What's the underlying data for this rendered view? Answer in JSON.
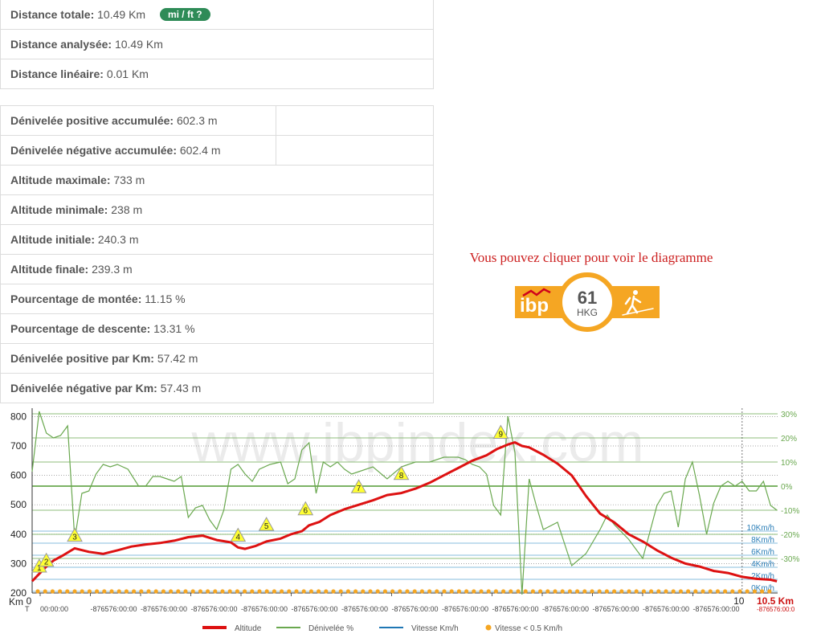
{
  "stats1": [
    {
      "label": "Distance totale:",
      "value": "10.49 Km"
    },
    {
      "label": "Distance analysée:",
      "value": "10.49 Km"
    },
    {
      "label": "Distance linéaire:",
      "value": "0.01 Km"
    }
  ],
  "units_button": "mi / ft ?",
  "stats2": [
    {
      "label": "Dénivelée positive accumulée:",
      "value": "602.3 m"
    },
    {
      "label": "Dénivelée négative accumulée:",
      "value": "602.4 m"
    },
    {
      "label": "Altitude maximale:",
      "value": "733 m"
    },
    {
      "label": "Altitude minimale:",
      "value": "238 m"
    },
    {
      "label": "Altitude initiale:",
      "value": "240.3 m"
    },
    {
      "label": "Altitude finale:",
      "value": "239.3 m"
    },
    {
      "label": "Pourcentage de montée:",
      "value": "11.15 %"
    },
    {
      "label": "Pourcentage de descente:",
      "value": "13.31 %"
    },
    {
      "label": "Dénivelée positive par Km:",
      "value": "57.42 m"
    },
    {
      "label": "Dénivelée négative par Km:",
      "value": "57.43 m"
    }
  ],
  "ibp": {
    "caption": "Vous pouvez cliquer pour voir le diagramme",
    "logo_text": "ibp",
    "score": "61",
    "code": "HKG",
    "colors": {
      "orange": "#f5a623",
      "ring": "#f5a623"
    }
  },
  "chart_data": {
    "type": "line",
    "watermark": "www.ibpindex.com",
    "x_label": "Km",
    "x_end_label": "10.5 Km",
    "x_end_sub": "-876576:00:0",
    "xlim": [
      0,
      10.5
    ],
    "ylim": [
      200,
      850
    ],
    "yticks": [
      200,
      300,
      400,
      500,
      600,
      700,
      800
    ],
    "x_tick_labels": [
      {
        "x": 0,
        "label": "0"
      },
      {
        "x": 10,
        "label": "10"
      }
    ],
    "time_row_start": "T",
    "time_labels": [
      "00:00:00",
      "-876576:00:00",
      "-876576:00:00",
      "-876576:00:00",
      "-876576:00:00",
      "-876576:00:00",
      "-876576:00:00",
      "-876576:00:00",
      "-876576:00:00",
      "-876576:00:00",
      "-876576:00:00",
      "-876576:00:00",
      "-876576:00:00",
      "-876576:00:00"
    ],
    "slope_ticks": [
      {
        "pct": 30,
        "label": "30%"
      },
      {
        "pct": 20,
        "label": "20%"
      },
      {
        "pct": 10,
        "label": "10%"
      },
      {
        "pct": 0,
        "label": "0%"
      },
      {
        "pct": -10,
        "label": "-10%"
      },
      {
        "pct": -20,
        "label": "-20%"
      },
      {
        "pct": -30,
        "label": "-30%"
      }
    ],
    "speed_ticks": [
      {
        "kmh": 10,
        "label": "10Km/h"
      },
      {
        "kmh": 8,
        "label": "8Km/h"
      },
      {
        "kmh": 6,
        "label": "6Km/h"
      },
      {
        "kmh": 4,
        "label": "4Km/h"
      },
      {
        "kmh": 2,
        "label": "2Km/h"
      },
      {
        "kmh": 0,
        "label": "0Km/h"
      }
    ],
    "series": [
      {
        "name": "Altitude",
        "color": "#dd1111",
        "x": [
          0,
          0.1,
          0.2,
          0.3,
          0.45,
          0.6,
          0.8,
          1.0,
          1.2,
          1.4,
          1.6,
          1.8,
          2.0,
          2.2,
          2.4,
          2.6,
          2.8,
          2.9,
          3.0,
          3.15,
          3.3,
          3.5,
          3.65,
          3.8,
          3.9,
          4.05,
          4.2,
          4.4,
          4.6,
          4.8,
          5.0,
          5.2,
          5.4,
          5.6,
          5.8,
          6.0,
          6.2,
          6.4,
          6.55,
          6.7,
          6.8,
          6.9,
          7.0,
          7.2,
          7.4,
          7.6,
          7.8,
          8.0,
          8.2,
          8.4,
          8.6,
          8.8,
          9.0,
          9.2,
          9.4,
          9.6,
          9.8,
          10.0,
          10.2,
          10.4,
          10.49
        ],
        "y": [
          240,
          265,
          290,
          310,
          330,
          352,
          340,
          333,
          345,
          358,
          365,
          370,
          378,
          390,
          395,
          380,
          372,
          355,
          350,
          360,
          375,
          385,
          400,
          410,
          430,
          442,
          465,
          485,
          500,
          515,
          533,
          540,
          555,
          575,
          600,
          625,
          650,
          668,
          690,
          705,
          712,
          700,
          695,
          670,
          640,
          600,
          530,
          470,
          440,
          400,
          375,
          345,
          320,
          300,
          290,
          275,
          268,
          255,
          248,
          245,
          240
        ]
      },
      {
        "name": "Dénivelée %",
        "color": "#6aa84f",
        "x": [
          0,
          0.1,
          0.2,
          0.3,
          0.4,
          0.5,
          0.6,
          0.7,
          0.8,
          0.9,
          1.0,
          1.1,
          1.2,
          1.35,
          1.5,
          1.6,
          1.7,
          1.8,
          1.9,
          2.0,
          2.1,
          2.2,
          2.3,
          2.4,
          2.5,
          2.6,
          2.7,
          2.8,
          2.9,
          3.0,
          3.1,
          3.2,
          3.35,
          3.5,
          3.6,
          3.7,
          3.8,
          3.9,
          4.0,
          4.1,
          4.2,
          4.3,
          4.4,
          4.5,
          4.6,
          4.8,
          5.0,
          5.2,
          5.4,
          5.6,
          5.8,
          6.0,
          6.1,
          6.2,
          6.3,
          6.4,
          6.5,
          6.6,
          6.7,
          6.8,
          6.9,
          7.0,
          7.1,
          7.2,
          7.4,
          7.6,
          7.8,
          8.0,
          8.1,
          8.2,
          8.4,
          8.6,
          8.8,
          8.9,
          9.0,
          9.1,
          9.2,
          9.3,
          9.4,
          9.5,
          9.6,
          9.7,
          9.8,
          9.9,
          10.0,
          10.1,
          10.2,
          10.3,
          10.4,
          10.49
        ],
        "y": [
          6,
          31,
          22,
          20,
          21,
          25,
          -22,
          -3,
          -2,
          5,
          9,
          8,
          9,
          7,
          0,
          0,
          4,
          4,
          3,
          2,
          4,
          -13,
          -9,
          -8,
          -14,
          -18,
          -10,
          7,
          9,
          5,
          2,
          7,
          9,
          10,
          1,
          3,
          15,
          18,
          -3,
          10,
          8,
          10,
          7,
          5,
          6,
          8,
          3,
          8,
          10,
          10,
          12,
          12,
          11,
          9,
          8,
          5,
          -8,
          -12,
          29,
          14,
          -45,
          3,
          -8,
          -18,
          -15,
          -33,
          -28,
          -18,
          -12,
          -16,
          -22,
          -30,
          -8,
          -3,
          -2,
          -17,
          3,
          10,
          -4,
          -20,
          -7,
          0,
          2,
          0,
          2,
          -2,
          -2,
          2,
          -8,
          -10
        ]
      }
    ],
    "markers": [
      {
        "label": "1",
        "x": 0.1,
        "alt": 290
      },
      {
        "label": "2",
        "x": 0.2,
        "alt": 310
      },
      {
        "label": "3",
        "x": 0.6,
        "alt": 395
      },
      {
        "label": "4",
        "x": 2.9,
        "alt": 395
      },
      {
        "label": "5",
        "x": 3.3,
        "alt": 432
      },
      {
        "label": "6",
        "x": 3.85,
        "alt": 485
      },
      {
        "label": "7",
        "x": 4.6,
        "alt": 560
      },
      {
        "label": "8",
        "x": 5.2,
        "alt": 605
      },
      {
        "label": "9",
        "x": 6.6,
        "alt": 745
      }
    ],
    "legend": [
      {
        "name": "Altitude",
        "color": "#dd1111",
        "style": "line-thick"
      },
      {
        "name": "Dénivelée %",
        "color": "#6aa84f",
        "style": "line"
      },
      {
        "name": "Vitesse Km/h",
        "color": "#1f77b4",
        "style": "line"
      },
      {
        "name": "Vitesse < 0.5 Km/h",
        "color": "#f5a623",
        "style": "dot"
      }
    ]
  }
}
